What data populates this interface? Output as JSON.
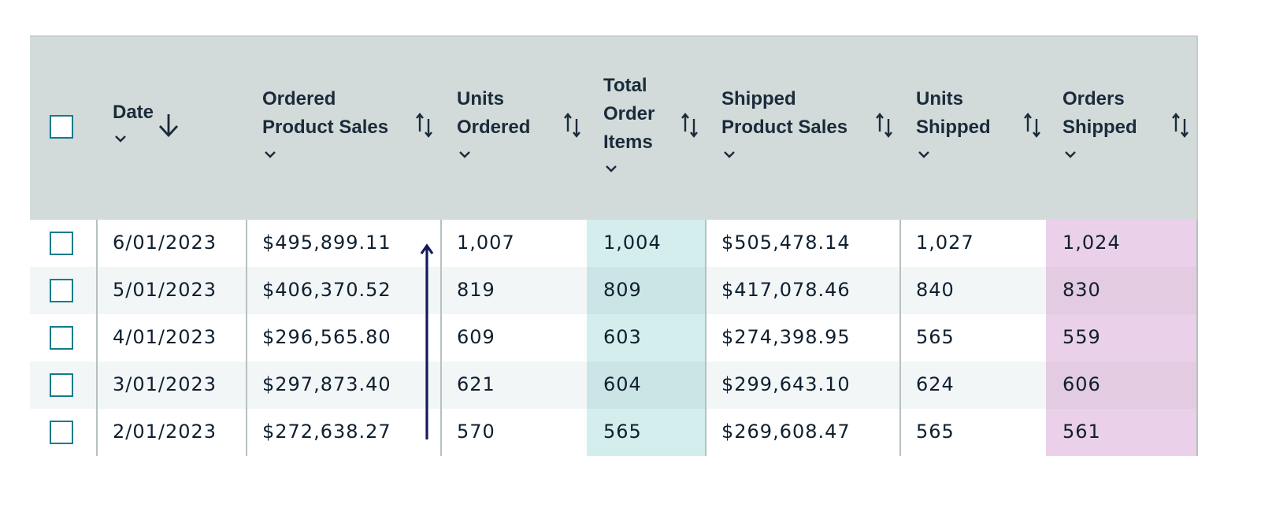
{
  "table": {
    "columns": [
      {
        "label_lines": [
          "Date"
        ],
        "sort": "descending"
      },
      {
        "label_lines": [
          "Ordered",
          "Product Sales"
        ],
        "sort": "sortable"
      },
      {
        "label_lines": [
          "Units",
          "Ordered"
        ],
        "sort": "sortable"
      },
      {
        "label_lines": [
          "Total",
          "Order",
          "Items"
        ],
        "sort": "sortable"
      },
      {
        "label_lines": [
          "Shipped",
          "Product Sales"
        ],
        "sort": "sortable"
      },
      {
        "label_lines": [
          "Units",
          "Shipped"
        ],
        "sort": "sortable"
      },
      {
        "label_lines": [
          "Orders",
          "Shipped"
        ],
        "sort": "sortable"
      }
    ],
    "rows": [
      [
        "6/01/2023",
        "$495,899.11",
        "1,007",
        "1,004",
        "$505,478.14",
        "1,027",
        "1,024"
      ],
      [
        "5/01/2023",
        "$406,370.52",
        "819",
        "809",
        "$417,078.46",
        "840",
        "830"
      ],
      [
        "4/01/2023",
        "$296,565.80",
        "609",
        "603",
        "$274,398.95",
        "565",
        "559"
      ],
      [
        "3/01/2023",
        "$297,873.40",
        "621",
        "604",
        "$299,643.10",
        "624",
        "606"
      ],
      [
        "2/01/2023",
        "$272,638.27",
        "570",
        "565",
        "$269,608.47",
        "565",
        "561"
      ]
    ],
    "highlight_colors": {
      "total_order_items": "#d3eeec",
      "orders_shipped": "#ebd0ea"
    },
    "header_background": "#d2dbda",
    "checkbox_color": "#137c8a",
    "icons": {
      "sort": "sort-up-down-icon",
      "sort_active": "arrow-down-icon",
      "menu": "chevron-down-icon",
      "annotation": "arrow-up-icon"
    }
  }
}
